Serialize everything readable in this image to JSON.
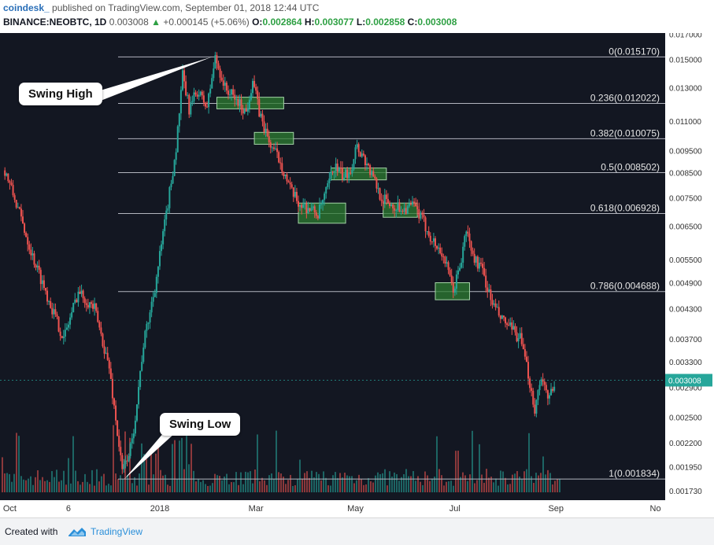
{
  "header": {
    "author": "coindesk_",
    "published_text": "published on TradingView.com, September 01, 2018 12:44 UTC",
    "symbol": "BINANCE:NEOBTC, 1D",
    "last": "0.003008",
    "change": "+0.000145 (+5.06%)",
    "open_label": "O:",
    "open": "0.002864",
    "high_label": "H:",
    "high": "0.003077",
    "low_label": "L:",
    "low": "0.002858",
    "close_label": "C:",
    "close": "0.003008"
  },
  "footer": {
    "created_with": "Created with",
    "brand": "TradingView"
  },
  "colors": {
    "background": "#131722",
    "up": "#26a69a",
    "down": "#ef5350",
    "fib_line": "#b2b5be",
    "zone_fill": "#2e7d32",
    "zone_border": "#a5d6a7",
    "price_tag": "#26a69a"
  },
  "chart_data": {
    "type": "candlestick",
    "scale": "log",
    "ylim": [
      0.00165,
      0.0171
    ],
    "y_ticks": [
      "0.017000",
      "0.015000",
      "0.013000",
      "0.011000",
      "0.009500",
      "0.008500",
      "0.007500",
      "0.006500",
      "0.005500",
      "0.004900",
      "0.004300",
      "0.003700",
      "0.003300",
      "0.002900",
      "0.002500",
      "0.002200",
      "0.001950",
      "0.001730"
    ],
    "y_tick_values": [
      0.017,
      0.015,
      0.013,
      0.011,
      0.0095,
      0.0085,
      0.0075,
      0.0065,
      0.0055,
      0.0049,
      0.0043,
      0.0037,
      0.0033,
      0.0029,
      0.0025,
      0.0022,
      0.00195,
      0.00173
    ],
    "x_ticks": [
      {
        "label": "Oct",
        "date": "2017-10-01"
      },
      {
        "label": "6",
        "date": "2017-11-06"
      },
      {
        "label": "2018",
        "date": "2018-01-01"
      },
      {
        "label": "Mar",
        "date": "2018-03-01"
      },
      {
        "label": "May",
        "date": "2018-05-01"
      },
      {
        "label": "Jul",
        "date": "2018-07-01"
      },
      {
        "label": "Sep",
        "date": "2018-09-01"
      },
      {
        "label": "No",
        "date": "2018-11-01"
      }
    ],
    "price_path": [
      {
        "date": "2017-09-28",
        "price": 0.0086
      },
      {
        "date": "2017-10-06",
        "price": 0.0071
      },
      {
        "date": "2017-10-15",
        "price": 0.0056
      },
      {
        "date": "2017-10-26",
        "price": 0.0044
      },
      {
        "date": "2017-11-03",
        "price": 0.0037
      },
      {
        "date": "2017-11-12",
        "price": 0.0047
      },
      {
        "date": "2017-11-22",
        "price": 0.0043
      },
      {
        "date": "2017-12-01",
        "price": 0.0032
      },
      {
        "date": "2017-12-09",
        "price": 0.0019
      },
      {
        "date": "2017-12-15",
        "price": 0.0022
      },
      {
        "date": "2017-12-22",
        "price": 0.0036
      },
      {
        "date": "2017-12-29",
        "price": 0.0048
      },
      {
        "date": "2018-01-05",
        "price": 0.0069
      },
      {
        "date": "2018-01-11",
        "price": 0.0096
      },
      {
        "date": "2018-01-15",
        "price": 0.0138
      },
      {
        "date": "2018-01-19",
        "price": 0.0117
      },
      {
        "date": "2018-01-24",
        "price": 0.0128
      },
      {
        "date": "2018-01-30",
        "price": 0.0118
      },
      {
        "date": "2018-02-04",
        "price": 0.0151
      },
      {
        "date": "2018-02-10",
        "price": 0.013
      },
      {
        "date": "2018-02-18",
        "price": 0.0121
      },
      {
        "date": "2018-02-23",
        "price": 0.0115
      },
      {
        "date": "2018-02-27",
        "price": 0.0136
      },
      {
        "date": "2018-03-03",
        "price": 0.0115
      },
      {
        "date": "2018-03-09",
        "price": 0.0099
      },
      {
        "date": "2018-03-16",
        "price": 0.009
      },
      {
        "date": "2018-03-22",
        "price": 0.0078
      },
      {
        "date": "2018-03-27",
        "price": 0.0073
      },
      {
        "date": "2018-04-03",
        "price": 0.0071
      },
      {
        "date": "2018-04-08",
        "price": 0.0069
      },
      {
        "date": "2018-04-13",
        "price": 0.0077
      },
      {
        "date": "2018-04-18",
        "price": 0.0088
      },
      {
        "date": "2018-04-24",
        "price": 0.0083
      },
      {
        "date": "2018-04-29",
        "price": 0.0088
      },
      {
        "date": "2018-05-01",
        "price": 0.0098
      },
      {
        "date": "2018-05-06",
        "price": 0.0092
      },
      {
        "date": "2018-05-11",
        "price": 0.0084
      },
      {
        "date": "2018-05-17",
        "price": 0.0075
      },
      {
        "date": "2018-05-24",
        "price": 0.0072
      },
      {
        "date": "2018-05-31",
        "price": 0.0071
      },
      {
        "date": "2018-06-06",
        "price": 0.0072
      },
      {
        "date": "2018-06-12",
        "price": 0.0066
      },
      {
        "date": "2018-06-18",
        "price": 0.006
      },
      {
        "date": "2018-06-24",
        "price": 0.0056
      },
      {
        "date": "2018-06-30",
        "price": 0.0047
      },
      {
        "date": "2018-07-05",
        "price": 0.0055
      },
      {
        "date": "2018-07-08",
        "price": 0.0064
      },
      {
        "date": "2018-07-12",
        "price": 0.0056
      },
      {
        "date": "2018-07-18",
        "price": 0.0052
      },
      {
        "date": "2018-07-23",
        "price": 0.0045
      },
      {
        "date": "2018-07-29",
        "price": 0.0041
      },
      {
        "date": "2018-08-04",
        "price": 0.0039
      },
      {
        "date": "2018-08-10",
        "price": 0.0037
      },
      {
        "date": "2018-08-15",
        "price": 0.0031
      },
      {
        "date": "2018-08-19",
        "price": 0.0026
      },
      {
        "date": "2018-08-23",
        "price": 0.0031
      },
      {
        "date": "2018-08-27",
        "price": 0.0027
      },
      {
        "date": "2018-08-31",
        "price": 0.003
      }
    ],
    "last_price": "0.003008",
    "last_price_value": 0.003008,
    "fib_levels": [
      {
        "label": "0(0.015170)",
        "value": 0.01517
      },
      {
        "label": "0.236(0.012022)",
        "value": 0.012022
      },
      {
        "label": "0.382(0.010075)",
        "value": 0.010075
      },
      {
        "label": "0.5(0.008502)",
        "value": 0.008502
      },
      {
        "label": "0.618(0.006928)",
        "value": 0.006928
      },
      {
        "label": "0.786(0.004688)",
        "value": 0.004688
      },
      {
        "label": "1(0.001834)",
        "value": 0.001834
      }
    ],
    "zones": [
      {
        "start": "2018-02-05",
        "end": "2018-03-18",
        "low": 0.0117,
        "high": 0.0124
      },
      {
        "start": "2018-02-28",
        "end": "2018-03-24",
        "low": 0.0098,
        "high": 0.0104
      },
      {
        "start": "2018-03-27",
        "end": "2018-04-25",
        "low": 0.0066,
        "high": 0.0073
      },
      {
        "start": "2018-04-16",
        "end": "2018-05-20",
        "low": 0.0082,
        "high": 0.0087
      },
      {
        "start": "2018-05-18",
        "end": "2018-06-08",
        "low": 0.0068,
        "high": 0.0073
      },
      {
        "start": "2018-06-19",
        "end": "2018-07-10",
        "low": 0.0045,
        "high": 0.0049
      }
    ],
    "annotations": [
      {
        "text": "Swing High",
        "point_date": "2018-02-02",
        "point_value": 0.01517
      },
      {
        "text": "Swing Low",
        "point_date": "2017-12-10",
        "point_value": 0.00183
      }
    ]
  }
}
